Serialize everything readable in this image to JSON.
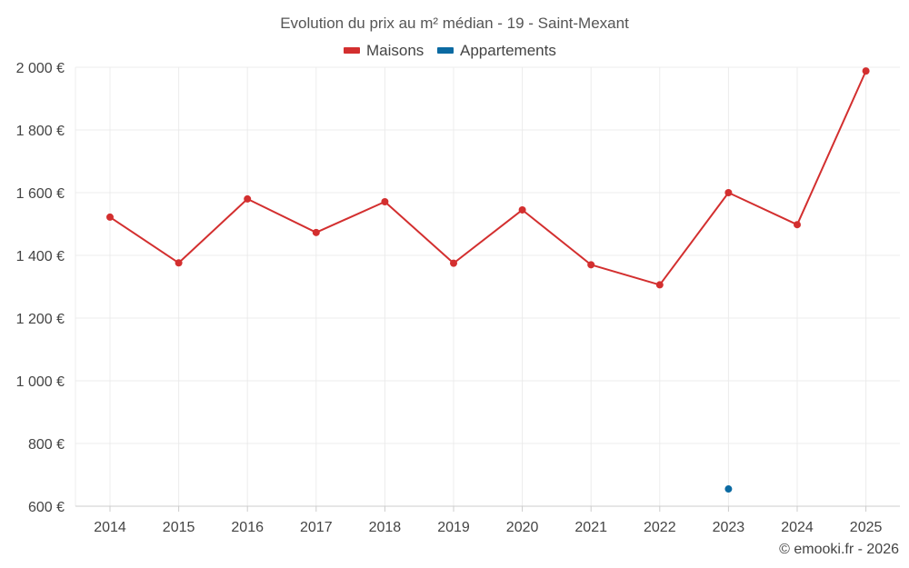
{
  "chart_data": {
    "type": "line",
    "title": "Evolution du prix au m² médian - 19 - Saint-Mexant",
    "categories": [
      "2014",
      "2015",
      "2016",
      "2017",
      "2018",
      "2019",
      "2020",
      "2021",
      "2022",
      "2023",
      "2024",
      "2025"
    ],
    "series": [
      {
        "name": "Maisons",
        "color": "#d32f2f",
        "values": [
          1522,
          1376,
          1580,
          1473,
          1571,
          1375,
          1545,
          1370,
          1306,
          1600,
          1498,
          1988
        ]
      },
      {
        "name": "Appartements",
        "color": "#0b6aa2",
        "values": [
          null,
          null,
          null,
          null,
          null,
          null,
          null,
          null,
          null,
          655,
          null,
          null
        ]
      }
    ],
    "y_ticks": [
      600,
      800,
      1000,
      1200,
      1400,
      1600,
      1800,
      2000
    ],
    "y_tick_labels": [
      "600 €",
      "800 €",
      "1 000 €",
      "1 200 €",
      "1 400 €",
      "1 600 €",
      "1 800 €",
      "2 000 €"
    ],
    "ylim": [
      600,
      2000
    ],
    "xlabel": "",
    "ylabel": "",
    "grid": true,
    "legend": "top-center"
  },
  "credit": "© emooki.fr - 2026"
}
